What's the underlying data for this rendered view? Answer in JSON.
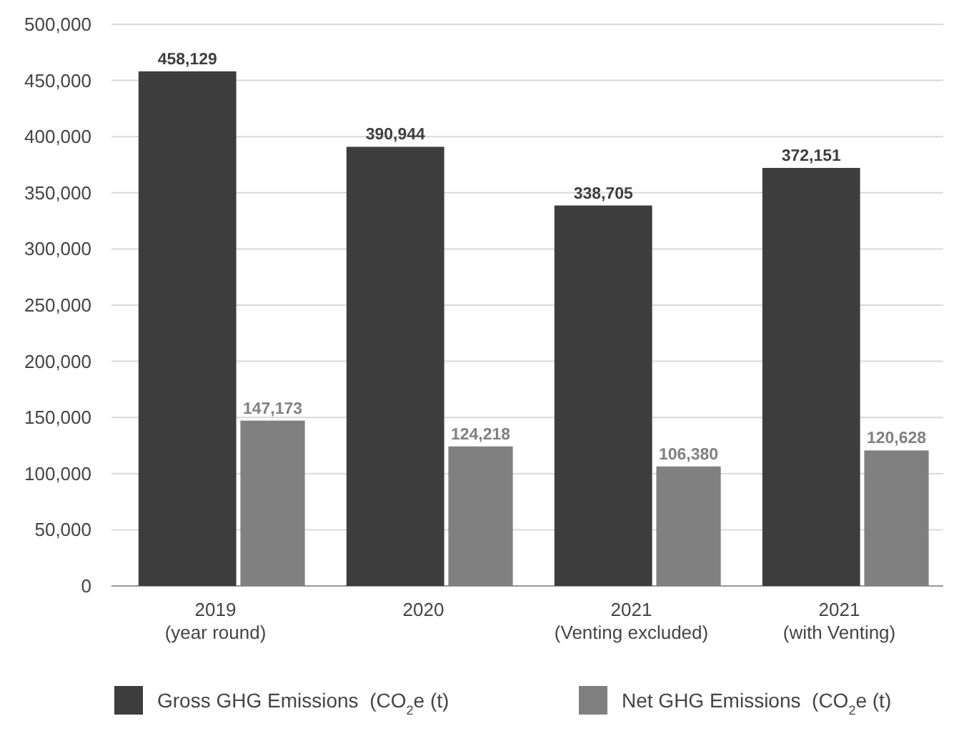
{
  "chart_data": {
    "type": "bar",
    "categories": [
      "2019\n(year round)",
      "2020",
      "2021\n(Venting excluded)",
      "2021\n(with Venting)"
    ],
    "series": [
      {
        "name": "Gross GHG Emissions  (CO$_{2}$e (t)",
        "color": "#3d3d3d",
        "values": [
          458129,
          390944,
          338705,
          372151
        ],
        "value_labels": [
          "458,129",
          "390,944",
          "338,705",
          "372,151"
        ]
      },
      {
        "name": "Net GHG Emissions  (CO$_{2}$e (t)",
        "color": "#808080",
        "values": [
          147173,
          124218,
          106380,
          120628
        ],
        "value_labels": [
          "147,173",
          "124,218",
          "106,380",
          "120,628"
        ]
      }
    ],
    "ylim": [
      0,
      500000
    ],
    "yticks": [
      {
        "value": 0,
        "label": "0"
      },
      {
        "value": 50000,
        "label": "50,000"
      },
      {
        "value": 100000,
        "label": "100,000"
      },
      {
        "value": 150000,
        "label": "150,000"
      },
      {
        "value": 200000,
        "label": "200,000"
      },
      {
        "value": 250000,
        "label": "250,000"
      },
      {
        "value": 300000,
        "label": "300,000"
      },
      {
        "value": 350000,
        "label": "350,000"
      },
      {
        "value": 400000,
        "label": "400,000"
      },
      {
        "value": 450000,
        "label": "450,000"
      },
      {
        "value": 500000,
        "label": "500,000"
      }
    ],
    "grid": "y",
    "legend": "bottom"
  }
}
